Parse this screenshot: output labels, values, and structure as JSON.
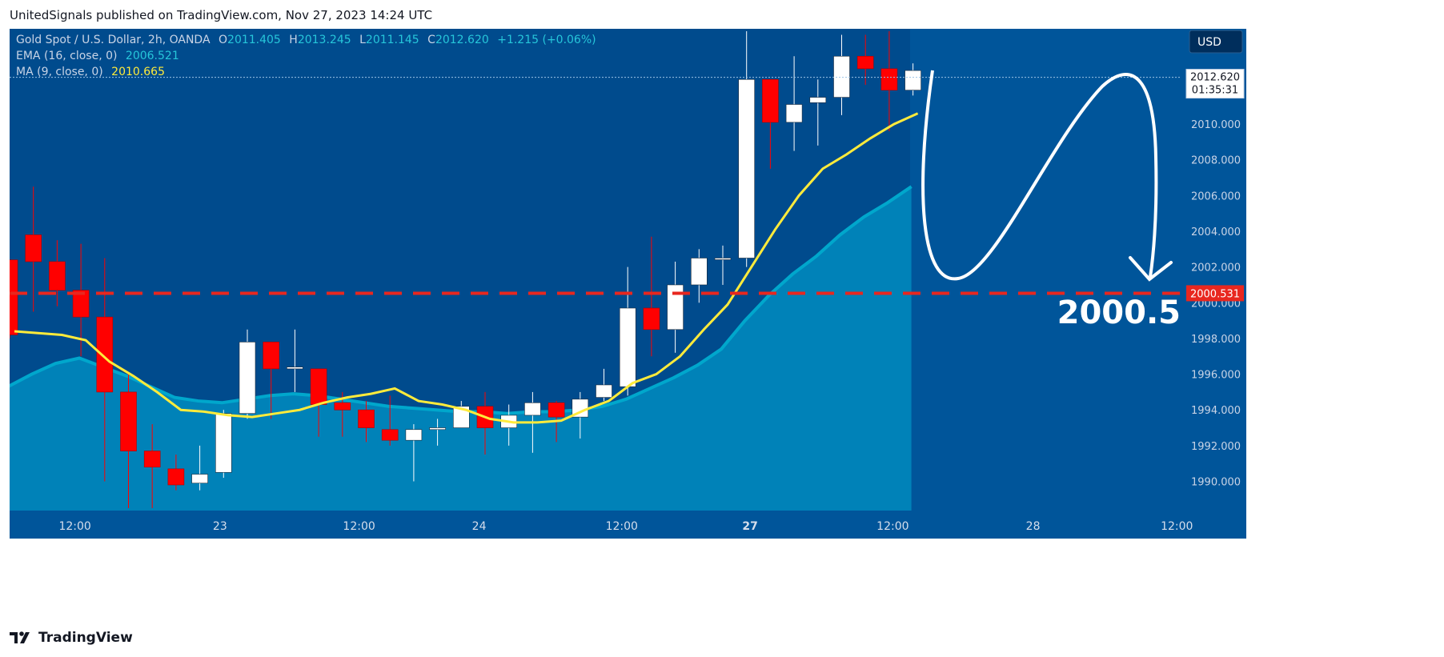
{
  "header": {
    "text": "UnitedSignals published on TradingView.com, Nov 27, 2023 14:24 UTC"
  },
  "footer": {
    "brand": "TradingView"
  },
  "legend": {
    "symbol": "Gold Spot / U.S. Dollar, 2h, OANDA",
    "o_label": "O",
    "o_value": "2011.405",
    "h_label": "H",
    "h_value": "2013.245",
    "l_label": "L",
    "l_value": "2011.145",
    "c_label": "C",
    "c_value": "2012.620",
    "change": "+1.215 (+0.06%)",
    "ema_label": "EMA (16, close, 0)",
    "ema_value": "2006.521",
    "ma_label": "MA (9, close, 0)",
    "ma_value": "2010.665"
  },
  "currency_button": "USD",
  "price_tag": {
    "price": "2012.620",
    "countdown": "01:35:31"
  },
  "level_tag": "2000.531",
  "annotation_target": "2000.5",
  "colors": {
    "background": "#00559a",
    "up": "#ffffff",
    "down": "#ff0000",
    "ema_fill": "#0082b8",
    "ema_line": "#00a7cc",
    "ma_line": "#ffeb3b",
    "level": "#e8271f"
  },
  "chart_data": {
    "type": "candlestick",
    "title": "Gold Spot / U.S. Dollar, 2h, OANDA",
    "ylim": [
      1988.5,
      2015.2
    ],
    "y_ticks": [
      "2010.000",
      "2008.000",
      "2006.000",
      "2004.000",
      "2002.000",
      "2000.000",
      "1998.000",
      "1996.000",
      "1994.000",
      "1992.000",
      "1990.000"
    ],
    "x_ticks": [
      "12:00",
      "23",
      "12:00",
      "24",
      "12:00",
      "27",
      "12:00",
      "28",
      "12:00"
    ],
    "candles": [
      {
        "o": 2002.4,
        "h": 2002.4,
        "l": 1998.0,
        "c": 1998.2
      },
      {
        "o": 2003.8,
        "h": 2006.5,
        "l": 1999.5,
        "c": 2002.3
      },
      {
        "o": 2002.3,
        "h": 2003.5,
        "l": 1999.8,
        "c": 2000.7
      },
      {
        "o": 2000.7,
        "h": 2003.3,
        "l": 1997.0,
        "c": 1999.2
      },
      {
        "o": 1999.2,
        "h": 2002.5,
        "l": 1990.0,
        "c": 1995.0
      },
      {
        "o": 1995.0,
        "h": 1996.0,
        "l": 1988.5,
        "c": 1991.7
      },
      {
        "o": 1991.7,
        "h": 1993.2,
        "l": 1988.5,
        "c": 1990.8
      },
      {
        "o": 1990.7,
        "h": 1991.5,
        "l": 1989.5,
        "c": 1989.8
      },
      {
        "o": 1989.9,
        "h": 1992.0,
        "l": 1989.5,
        "c": 1990.4
      },
      {
        "o": 1990.5,
        "h": 1994.0,
        "l": 1990.2,
        "c": 1993.8
      },
      {
        "o": 1993.8,
        "h": 1998.5,
        "l": 1993.5,
        "c": 1997.8
      },
      {
        "o": 1997.8,
        "h": 1997.8,
        "l": 1993.5,
        "c": 1996.3
      },
      {
        "o": 1996.3,
        "h": 1998.5,
        "l": 1995.0,
        "c": 1996.4
      },
      {
        "o": 1996.3,
        "h": 1996.3,
        "l": 1992.5,
        "c": 1994.3
      },
      {
        "o": 1994.4,
        "h": 1995.0,
        "l": 1992.5,
        "c": 1994.0
      },
      {
        "o": 1994.0,
        "h": 1994.5,
        "l": 1992.2,
        "c": 1993.0
      },
      {
        "o": 1992.9,
        "h": 1994.8,
        "l": 1992.0,
        "c": 1992.3
      },
      {
        "o": 1992.3,
        "h": 1993.2,
        "l": 1990.0,
        "c": 1992.9
      },
      {
        "o": 1992.9,
        "h": 1993.5,
        "l": 1992.0,
        "c": 1993.0
      },
      {
        "o": 1993.0,
        "h": 1994.5,
        "l": 1993.0,
        "c": 1994.2
      },
      {
        "o": 1994.2,
        "h": 1995.0,
        "l": 1991.5,
        "c": 1993.0
      },
      {
        "o": 1993.0,
        "h": 1994.3,
        "l": 1992.0,
        "c": 1993.7
      },
      {
        "o": 1993.7,
        "h": 1995.0,
        "l": 1991.6,
        "c": 1994.4
      },
      {
        "o": 1994.4,
        "h": 1994.5,
        "l": 1992.2,
        "c": 1993.6
      },
      {
        "o": 1993.6,
        "h": 1995.0,
        "l": 1992.4,
        "c": 1994.6
      },
      {
        "o": 1994.7,
        "h": 1996.3,
        "l": 1994.5,
        "c": 1995.4
      },
      {
        "o": 1995.3,
        "h": 2002.0,
        "l": 1994.8,
        "c": 1999.7
      },
      {
        "o": 1999.7,
        "h": 2003.7,
        "l": 1997.0,
        "c": 1998.5
      },
      {
        "o": 1998.5,
        "h": 2002.3,
        "l": 1997.2,
        "c": 2001.0
      },
      {
        "o": 2001.0,
        "h": 2003.0,
        "l": 2000.0,
        "c": 2002.5
      },
      {
        "o": 2002.5,
        "h": 2003.2,
        "l": 2001.0,
        "c": 2002.5
      },
      {
        "o": 2002.5,
        "h": 2015.2,
        "l": 2002.0,
        "c": 2012.5
      },
      {
        "o": 2012.5,
        "h": 2012.5,
        "l": 2007.5,
        "c": 2010.1
      },
      {
        "o": 2010.1,
        "h": 2013.8,
        "l": 2008.5,
        "c": 2011.1
      },
      {
        "o": 2011.2,
        "h": 2012.5,
        "l": 2008.8,
        "c": 2011.5
      },
      {
        "o": 2011.5,
        "h": 2015.0,
        "l": 2010.5,
        "c": 2013.8
      },
      {
        "o": 2013.8,
        "h": 2015.0,
        "l": 2012.2,
        "c": 2013.1
      },
      {
        "o": 2013.1,
        "h": 2015.2,
        "l": 2009.6,
        "c": 2011.9
      },
      {
        "o": 2011.9,
        "h": 2013.4,
        "l": 2011.6,
        "c": 2013.0
      }
    ],
    "ema": [
      1995.3,
      1996.0,
      1996.6,
      1996.9,
      1996.4,
      1995.9,
      1995.3,
      1994.7,
      1994.5,
      1994.4,
      1994.6,
      1994.8,
      1994.9,
      1994.8,
      1994.6,
      1994.4,
      1994.2,
      1994.1,
      1994.0,
      1993.9,
      1993.9,
      1993.8,
      1993.9,
      1993.9,
      1994.0,
      1994.2,
      1994.6,
      1995.2,
      1995.8,
      1996.5,
      1997.4,
      1999.0,
      2000.4,
      2001.6,
      2002.6,
      2003.8,
      2004.8,
      2005.6,
      2006.5
    ],
    "ma": [
      1998.4,
      1998.3,
      1998.2,
      1997.9,
      1996.7,
      1995.9,
      1995.0,
      1994.0,
      1993.9,
      1993.7,
      1993.6,
      1993.8,
      1994.0,
      1994.4,
      1994.7,
      1994.9,
      1995.2,
      1994.5,
      1994.3,
      1994.0,
      1993.5,
      1993.3,
      1993.3,
      1993.4,
      1994.0,
      1994.5,
      1995.5,
      1996.0,
      1997.0,
      1998.5,
      1999.9,
      2002.0,
      2004.1,
      2006.0,
      2007.5,
      2008.3,
      2009.2,
      2010.0,
      2010.6
    ],
    "horizontal_level": 2000.531,
    "last_price": 2012.62,
    "current_price_line": 2012.62
  }
}
